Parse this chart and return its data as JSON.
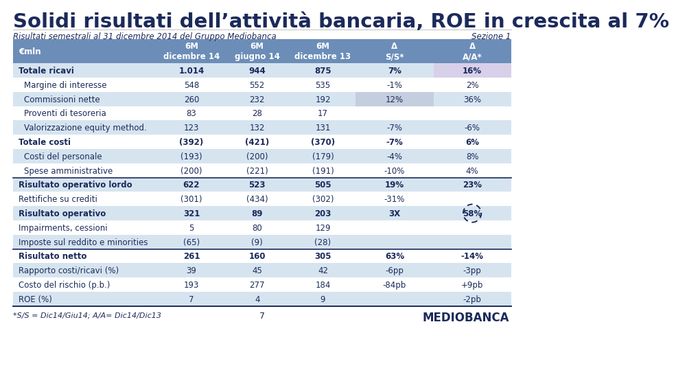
{
  "title": "Solidi risultati dell’attività bancaria, ROE in crescita al 7%",
  "subtitle_left": "Risultati semestrali al 31 dicembre 2014 del Gruppo Mediobanca",
  "subtitle_right": "Sezione 1",
  "col_headers": [
    "€mln",
    "6M\ndicembre 14",
    "6M\ngiugno 14",
    "6M\ndicembre 13",
    "Δ\nS/S*",
    "Δ\nA/A*"
  ],
  "rows": [
    {
      "label": "Totale ricavi",
      "bold": true,
      "indent": false,
      "v1": "1.014",
      "v2": "944",
      "v3": "875",
      "v4": "7%",
      "v5": "16%",
      "highlight_v4": false,
      "highlight_v5": true,
      "row_bg": "light"
    },
    {
      "label": "Margine di interesse",
      "bold": false,
      "indent": true,
      "v1": "548",
      "v2": "552",
      "v3": "535",
      "v4": "-1%",
      "v5": "2%",
      "highlight_v4": false,
      "highlight_v5": false,
      "row_bg": "white"
    },
    {
      "label": "Commissioni nette",
      "bold": false,
      "indent": true,
      "v1": "260",
      "v2": "232",
      "v3": "192",
      "v4": "12%",
      "v5": "36%",
      "highlight_v4": true,
      "highlight_v5": false,
      "row_bg": "light"
    },
    {
      "label": "Proventi di tesoreria",
      "bold": false,
      "indent": true,
      "v1": "83",
      "v2": "28",
      "v3": "17",
      "v4": "",
      "v5": "",
      "highlight_v4": false,
      "highlight_v5": false,
      "row_bg": "white"
    },
    {
      "label": "Valorizzazione equity method.",
      "bold": false,
      "indent": true,
      "v1": "123",
      "v2": "132",
      "v3": "131",
      "v4": "-7%",
      "v5": "-6%",
      "highlight_v4": false,
      "highlight_v5": false,
      "row_bg": "light"
    },
    {
      "label": "Totale costi",
      "bold": true,
      "indent": false,
      "v1": "(392)",
      "v2": "(421)",
      "v3": "(370)",
      "v4": "-7%",
      "v5": "6%",
      "highlight_v4": false,
      "highlight_v5": false,
      "row_bg": "white"
    },
    {
      "label": "Costi del personale",
      "bold": false,
      "indent": true,
      "v1": "(193)",
      "v2": "(200)",
      "v3": "(179)",
      "v4": "-4%",
      "v5": "8%",
      "highlight_v4": false,
      "highlight_v5": false,
      "row_bg": "light"
    },
    {
      "label": "Spese amministrative",
      "bold": false,
      "indent": true,
      "v1": "(200)",
      "v2": "(221)",
      "v3": "(191)",
      "v4": "-10%",
      "v5": "4%",
      "highlight_v4": false,
      "highlight_v5": false,
      "row_bg": "white"
    },
    {
      "label": "Risultato operativo lordo",
      "bold": true,
      "indent": false,
      "v1": "622",
      "v2": "523",
      "v3": "505",
      "v4": "19%",
      "v5": "23%",
      "highlight_v4": false,
      "highlight_v5": false,
      "row_bg": "light",
      "top_border": true
    },
    {
      "label": "Rettifiche su crediti",
      "bold": false,
      "indent": false,
      "v1": "(301)",
      "v2": "(434)",
      "v3": "(302)",
      "v4": "-31%",
      "v5": "",
      "highlight_v4": false,
      "highlight_v5": false,
      "row_bg": "white"
    },
    {
      "label": "Risultato operativo",
      "bold": true,
      "indent": false,
      "v1": "321",
      "v2": "89",
      "v3": "203",
      "v4": "3X",
      "v5": "58%",
      "highlight_v4": false,
      "highlight_v5": false,
      "row_bg": "light",
      "v5_dashed_circle": true
    },
    {
      "label": "Impairments, cessioni",
      "bold": false,
      "indent": false,
      "v1": "5",
      "v2": "80",
      "v3": "129",
      "v4": "",
      "v5": "",
      "highlight_v4": false,
      "highlight_v5": false,
      "row_bg": "white"
    },
    {
      "label": "Imposte sul reddito e minorities",
      "bold": false,
      "indent": false,
      "v1": "(65)",
      "v2": "(9)",
      "v3": "(28)",
      "v4": "",
      "v5": "",
      "highlight_v4": false,
      "highlight_v5": false,
      "row_bg": "light"
    },
    {
      "label": "Risultato netto",
      "bold": true,
      "indent": false,
      "v1": "261",
      "v2": "160",
      "v3": "305",
      "v4": "63%",
      "v5": "-14%",
      "highlight_v4": false,
      "highlight_v5": false,
      "row_bg": "white",
      "top_border": true
    },
    {
      "label": "Rapporto costi/ricavi (%)",
      "bold": false,
      "indent": false,
      "v1": "39",
      "v2": "45",
      "v3": "42",
      "v4": "-6pp",
      "v5": "-3pp",
      "highlight_v4": false,
      "highlight_v5": false,
      "row_bg": "light"
    },
    {
      "label": "Costo del rischio (p.b.)",
      "bold": false,
      "indent": false,
      "v1": "193",
      "v2": "277",
      "v3": "184",
      "v4": "-84pb",
      "v5": "+9pb",
      "highlight_v4": false,
      "highlight_v5": false,
      "row_bg": "white"
    },
    {
      "label": "ROE (%)",
      "bold": false,
      "indent": false,
      "v1": "7",
      "v2": "4",
      "v3": "9",
      "v4": "",
      "v5": "-2pb",
      "highlight_v4": false,
      "highlight_v5": false,
      "row_bg": "light",
      "bottom_border": true
    }
  ],
  "footnote": "*S/S = Dic14/Giu14; A/A= Dic14/Dic13",
  "page_number": "7",
  "colors": {
    "title": "#1B2A5A",
    "header_bg": "#6B8DB8",
    "header_text": "#FFFFFF",
    "row_light_bg": "#D6E4F0",
    "row_white_bg": "#FFFFFF",
    "cell_text": "#1B2A5A",
    "highlight_bg": "#C5CEDF",
    "highlight_v5_bg": "#D8D0E8",
    "border_line": "#1B2A5A",
    "subtitle_color": "#1B2A5A",
    "footnote_color": "#1B2A5A"
  }
}
